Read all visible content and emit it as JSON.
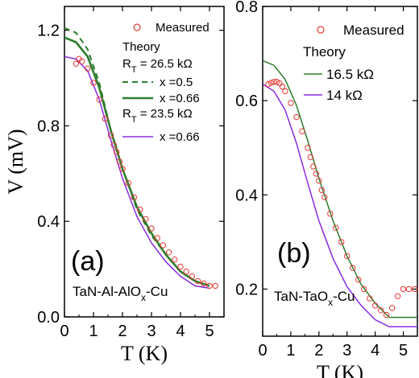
{
  "chart_data": [
    {
      "type": "line",
      "panel_label": "(a)",
      "sample_label": {
        "main": "TaN-Al-AlO",
        "sub": "x",
        "tail": "-Cu"
      },
      "xlabel": "T (K)",
      "ylabel": "V (mV)",
      "xlim": [
        0,
        5.5
      ],
      "ylim": [
        0,
        1.3
      ],
      "xticks": [
        "0",
        "1",
        "2",
        "3",
        "4",
        "5"
      ],
      "yticks": [
        "0.0",
        "0.4",
        "0.8",
        "1.2"
      ],
      "legend": {
        "measured": "Measured",
        "theory": "Theory",
        "rt1": {
          "main": "R",
          "sub": "T",
          "tail": " = 26.5 kΩ"
        },
        "rt2": {
          "main": "R",
          "sub": "T",
          "tail": " = 23.5 kΩ"
        }
      },
      "series": [
        {
          "name": "x =0.5",
          "color": "#2e7d2e",
          "dash": true,
          "x": [
            0,
            0.4,
            0.8,
            1.2,
            1.6,
            2.0,
            2.5,
            3.0,
            3.5,
            4.0,
            4.5,
            5.0
          ],
          "y": [
            1.21,
            1.19,
            1.12,
            0.98,
            0.78,
            0.62,
            0.45,
            0.34,
            0.26,
            0.19,
            0.15,
            0.13
          ]
        },
        {
          "name": "x =0.66",
          "color": "#2e7d2e",
          "width": 2.6,
          "x": [
            0,
            0.4,
            0.8,
            1.2,
            1.6,
            2.0,
            2.5,
            3.0,
            3.5,
            4.0,
            4.5,
            5.0
          ],
          "y": [
            1.17,
            1.15,
            1.09,
            0.96,
            0.78,
            0.62,
            0.46,
            0.35,
            0.26,
            0.19,
            0.15,
            0.13
          ]
        },
        {
          "name": "x =0.66",
          "color": "#8a2be2",
          "width": 1.5,
          "x": [
            0,
            0.4,
            0.8,
            1.2,
            1.6,
            2.0,
            2.5,
            3.0,
            3.5,
            4.0,
            4.5,
            5.0
          ],
          "y": [
            1.09,
            1.08,
            1.03,
            0.91,
            0.74,
            0.58,
            0.42,
            0.31,
            0.23,
            0.17,
            0.13,
            0.12
          ]
        }
      ],
      "measured": {
        "color": "#e53935",
        "x": [
          0.4,
          0.5,
          0.6,
          0.8,
          1.0,
          1.2,
          1.4,
          1.6,
          1.7,
          1.8,
          1.9,
          2.0,
          2.2,
          2.4,
          2.6,
          2.8,
          3.0,
          3.2,
          3.4,
          3.6,
          3.8,
          4.0,
          4.2,
          4.4,
          4.6,
          4.8,
          5.0,
          5.2
        ],
        "y": [
          1.06,
          1.08,
          1.07,
          1.04,
          0.98,
          0.91,
          0.83,
          0.76,
          0.72,
          0.69,
          0.65,
          0.62,
          0.56,
          0.5,
          0.45,
          0.41,
          0.37,
          0.33,
          0.3,
          0.27,
          0.24,
          0.21,
          0.19,
          0.17,
          0.15,
          0.14,
          0.13,
          0.13
        ]
      }
    },
    {
      "type": "line",
      "panel_label": "(b)",
      "sample_label": {
        "main": "TaN-TaO",
        "sub": "x",
        "tail": "-Cu"
      },
      "xlabel": "T (K)",
      "ylabel": "",
      "xlim": [
        0,
        5.5
      ],
      "ylim": [
        0.1,
        0.8
      ],
      "xticks": [
        "0",
        "1",
        "2",
        "3",
        "4",
        "5"
      ],
      "yticks": [
        "0.2",
        "0.4",
        "0.6",
        "0.8"
      ],
      "legend": {
        "measured": "Measured",
        "theory": "Theory"
      },
      "series": [
        {
          "name": "16.5 kΩ",
          "color": "#2e7d2e",
          "width": 1.5,
          "x": [
            0,
            0.4,
            0.8,
            1.2,
            1.6,
            2.0,
            2.5,
            3.0,
            3.5,
            4.0,
            4.5,
            5.0,
            5.5
          ],
          "y": [
            0.685,
            0.675,
            0.645,
            0.59,
            0.515,
            0.435,
            0.345,
            0.27,
            0.21,
            0.17,
            0.14,
            0.14,
            0.14
          ]
        },
        {
          "name": "14  kΩ",
          "color": "#8a2be2",
          "width": 1.5,
          "x": [
            0,
            0.4,
            0.8,
            1.2,
            1.6,
            2.0,
            2.5,
            3.0,
            3.5,
            4.0,
            4.5,
            5.0,
            5.5
          ],
          "y": [
            0.635,
            0.62,
            0.58,
            0.51,
            0.425,
            0.345,
            0.265,
            0.205,
            0.165,
            0.135,
            0.12,
            0.12,
            0.12
          ]
        }
      ],
      "measured": {
        "color": "#e53935",
        "x": [
          0.2,
          0.3,
          0.4,
          0.5,
          0.6,
          0.7,
          0.8,
          1.0,
          1.2,
          1.4,
          1.6,
          1.7,
          1.8,
          1.9,
          2.0,
          2.1,
          2.2,
          2.4,
          2.6,
          2.8,
          3.0,
          3.2,
          3.4,
          3.6,
          3.8,
          4.0,
          4.2,
          4.4,
          4.6,
          4.8,
          5.0,
          5.2,
          5.4
        ],
        "y": [
          0.635,
          0.638,
          0.64,
          0.64,
          0.637,
          0.63,
          0.62,
          0.595,
          0.565,
          0.535,
          0.5,
          0.48,
          0.46,
          0.445,
          0.43,
          0.41,
          0.395,
          0.36,
          0.33,
          0.3,
          0.27,
          0.245,
          0.22,
          0.2,
          0.18,
          0.165,
          0.155,
          0.145,
          0.16,
          0.185,
          0.2,
          0.2,
          0.2
        ]
      }
    }
  ]
}
